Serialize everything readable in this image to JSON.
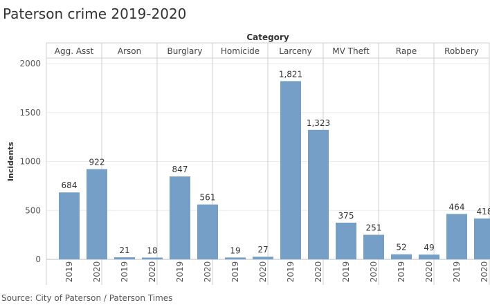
{
  "title": "Paterson crime 2019-2020",
  "source": "Source: City of Paterson / Paterson Times",
  "colors": {
    "bar": "#759fc6",
    "grid": "#ebebeb",
    "divider": "#cfcfcf"
  },
  "chart_data": {
    "type": "bar",
    "title": "Paterson crime 2019-2020",
    "header_label": "Category",
    "ylabel": "Incidents",
    "ylim": [
      0,
      2000
    ],
    "yticks": [
      0,
      500,
      1000,
      1500,
      2000
    ],
    "grid": true,
    "groups": [
      "Agg. Asst",
      "Arson",
      "Burglary",
      "Homicide",
      "Larceny",
      "MV Theft",
      "Rape",
      "Robbery"
    ],
    "subcategories": [
      "2019",
      "2020"
    ],
    "values": [
      [
        684,
        922
      ],
      [
        21,
        18
      ],
      [
        847,
        561
      ],
      [
        19,
        27
      ],
      [
        1821,
        1323
      ],
      [
        375,
        251
      ],
      [
        52,
        49
      ],
      [
        464,
        418
      ]
    ],
    "value_labels": [
      [
        "684",
        "922"
      ],
      [
        "21",
        "18"
      ],
      [
        "847",
        "561"
      ],
      [
        "19",
        "27"
      ],
      [
        "1,821",
        "1,323"
      ],
      [
        "375",
        "251"
      ],
      [
        "52",
        "49"
      ],
      [
        "464",
        "418"
      ]
    ]
  }
}
